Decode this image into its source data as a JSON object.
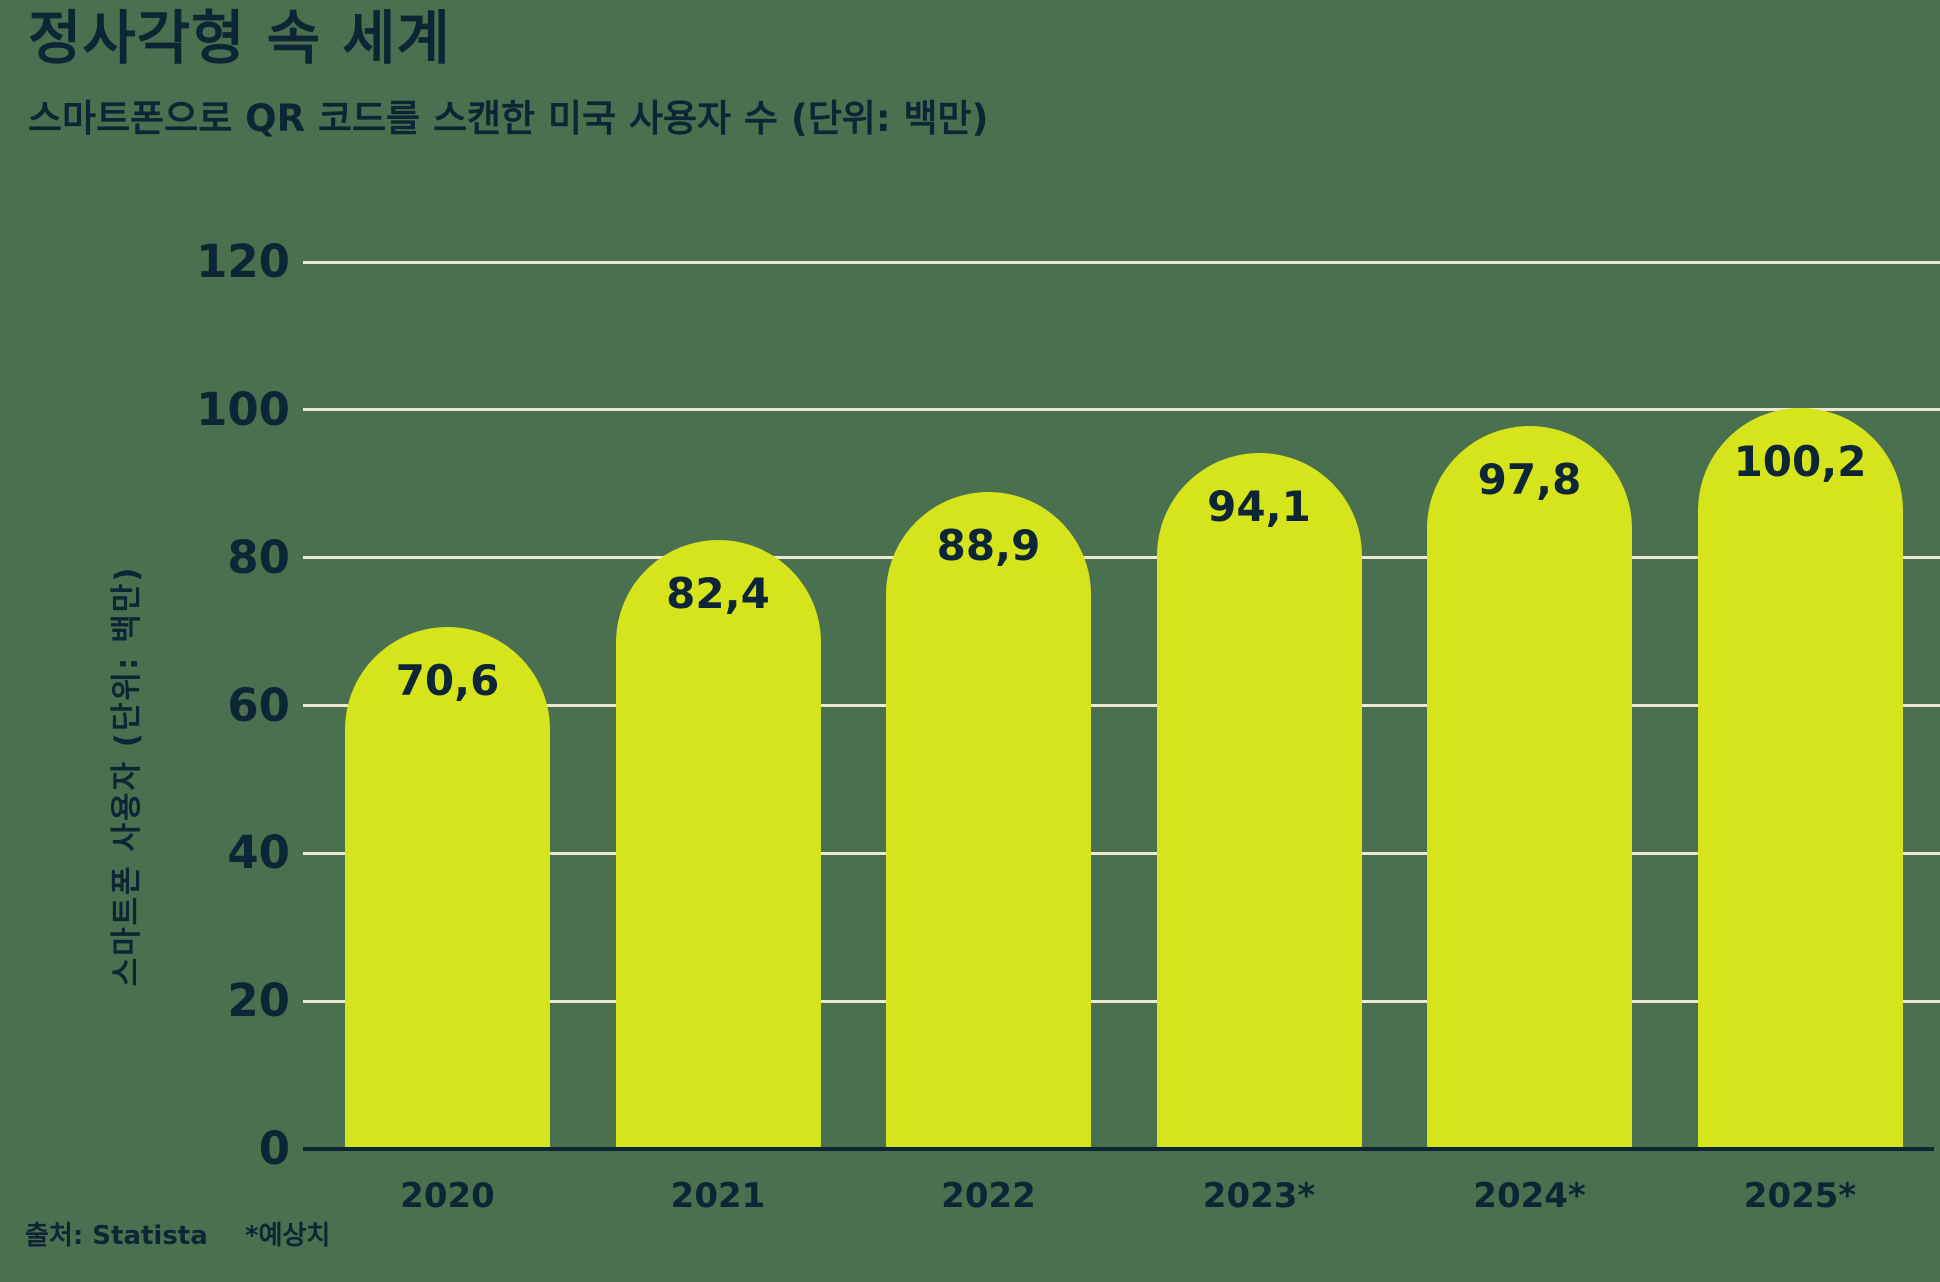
{
  "header": {
    "title": "정사각형 속 세계",
    "subtitle": "스마트폰으로 QR 코드를 스캔한 미국 사용자 수 (단위: 백만)"
  },
  "footer": {
    "source": "출처: Statista",
    "note": "*예상치"
  },
  "chart_data": {
    "type": "bar",
    "title": "정사각형 속 세계",
    "subtitle": "스마트폰으로 QR 코드를 스캔한 미국 사용자 수 (단위: 백만)",
    "ylabel": "스마트폰 사용자 (단위: 백만)",
    "xlabel": "",
    "categories": [
      "2020",
      "2021",
      "2022",
      "2023*",
      "2024*",
      "2025*"
    ],
    "values": [
      70.6,
      82.4,
      88.9,
      94.1,
      97.8,
      100.2
    ],
    "value_labels": [
      "70,6",
      "82,4",
      "88,9",
      "94,1",
      "97,8",
      "100,2"
    ],
    "ylim": [
      0,
      120
    ],
    "yticks": [
      0,
      20,
      40,
      60,
      80,
      100,
      120
    ],
    "grid": true,
    "legend": "none",
    "bar_top_shape": "semicircle",
    "colors": {
      "background": "#4A704F",
      "bar": "#D6E41C",
      "gridline": "#F0E9D1",
      "text": "#0D2535",
      "axis": "#0D2535"
    }
  }
}
